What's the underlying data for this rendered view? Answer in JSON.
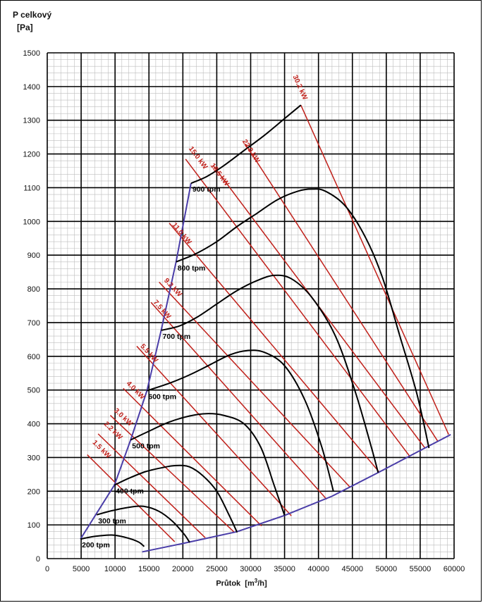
{
  "chart_data": {
    "type": "line",
    "ylabel_line1": "P celkový",
    "ylabel_line2": "[Pa]",
    "xlabel_main": "Průtok",
    "xlabel_unit_open": "[m",
    "xlabel_unit_sup": "3",
    "xlabel_unit_close": "/h]",
    "xlim": [
      0,
      60000
    ],
    "ylim": [
      0,
      1500
    ],
    "x_ticks": [
      "0",
      "5000",
      "10000",
      "15000",
      "20000",
      "25000",
      "30000",
      "35000",
      "40000",
      "45000",
      "50000",
      "55000",
      "60000"
    ],
    "y_ticks": [
      "0",
      "100",
      "200",
      "300",
      "400",
      "500",
      "600",
      "700",
      "800",
      "900",
      "1000",
      "1100",
      "1200",
      "1300",
      "1400",
      "1500"
    ],
    "grid": true,
    "speed_curves": [
      {
        "label": "200 tpm",
        "points": [
          [
            4900,
            58
          ],
          [
            7000,
            66
          ],
          [
            9500,
            70
          ],
          [
            11500,
            63
          ],
          [
            13400,
            50
          ],
          [
            14300,
            36
          ]
        ]
      },
      {
        "label": "300 tpm",
        "points": [
          [
            7300,
            130
          ],
          [
            9500,
            142
          ],
          [
            12000,
            152
          ],
          [
            14200,
            155
          ],
          [
            16500,
            140
          ],
          [
            18500,
            110
          ],
          [
            20200,
            72
          ],
          [
            21000,
            48
          ]
        ]
      },
      {
        "label": "400 tpm",
        "points": [
          [
            9900,
            218
          ],
          [
            12000,
            238
          ],
          [
            14500,
            258
          ],
          [
            17000,
            270
          ],
          [
            19000,
            276
          ],
          [
            21000,
            272
          ],
          [
            23000,
            245
          ],
          [
            25000,
            200
          ],
          [
            26800,
            130
          ],
          [
            28000,
            78
          ]
        ]
      },
      {
        "label": "500 tpm",
        "points": [
          [
            12300,
            352
          ],
          [
            15000,
            378
          ],
          [
            18000,
            405
          ],
          [
            21000,
            423
          ],
          [
            23500,
            430
          ],
          [
            26000,
            425
          ],
          [
            29000,
            400
          ],
          [
            31500,
            330
          ],
          [
            33500,
            215
          ],
          [
            35000,
            128
          ]
        ]
      },
      {
        "label": "600 tpm",
        "points": [
          [
            14700,
            498
          ],
          [
            18000,
            520
          ],
          [
            21000,
            545
          ],
          [
            24000,
            575
          ],
          [
            27000,
            605
          ],
          [
            29500,
            617
          ],
          [
            32000,
            612
          ],
          [
            35000,
            572
          ],
          [
            38000,
            470
          ],
          [
            40500,
            330
          ],
          [
            42200,
            200
          ]
        ]
      },
      {
        "label": "700 tpm",
        "points": [
          [
            16800,
            677
          ],
          [
            19500,
            690
          ],
          [
            22000,
            715
          ],
          [
            25000,
            755
          ],
          [
            28000,
            795
          ],
          [
            31000,
            825
          ],
          [
            33500,
            840
          ],
          [
            36000,
            830
          ],
          [
            39000,
            775
          ],
          [
            42500,
            660
          ],
          [
            45500,
            490
          ],
          [
            47800,
            330
          ],
          [
            48800,
            255
          ]
        ]
      },
      {
        "label": "800 tpm",
        "points": [
          [
            19000,
            880
          ],
          [
            22000,
            905
          ],
          [
            25000,
            940
          ],
          [
            28000,
            985
          ],
          [
            31000,
            1025
          ],
          [
            34000,
            1065
          ],
          [
            37000,
            1090
          ],
          [
            39000,
            1096
          ],
          [
            41000,
            1090
          ],
          [
            44000,
            1045
          ],
          [
            47000,
            950
          ],
          [
            49500,
            830
          ],
          [
            52000,
            660
          ],
          [
            54500,
            490
          ],
          [
            56300,
            328
          ]
        ]
      },
      {
        "label": "900 tpm",
        "points": [
          [
            21200,
            1113
          ],
          [
            23500,
            1133
          ],
          [
            26000,
            1165
          ],
          [
            29000,
            1210
          ],
          [
            32000,
            1255
          ],
          [
            35000,
            1305
          ],
          [
            37400,
            1345
          ]
        ]
      }
    ],
    "speed_label_anchor": [
      [
        4900,
        58
      ],
      [
        7300,
        130
      ],
      [
        9900,
        218
      ],
      [
        12300,
        352
      ],
      [
        14700,
        498
      ],
      [
        16800,
        677
      ],
      [
        19000,
        880
      ],
      [
        21200,
        1113
      ]
    ],
    "power_lines": [
      {
        "label": "1.5 kW",
        "from": [
          5900,
          308
        ],
        "to": [
          18800,
          50
        ]
      },
      {
        "label": "2.2 kW",
        "from": [
          7500,
          370
        ],
        "to": [
          23300,
          62
        ]
      },
      {
        "label": "3.0 kW",
        "from": [
          9300,
          425
        ],
        "to": [
          27600,
          78
        ]
      },
      {
        "label": "4.0 kW",
        "from": [
          11200,
          505
        ],
        "to": [
          31600,
          97
        ]
      },
      {
        "label": "5.5 kW",
        "from": [
          13200,
          630
        ],
        "to": [
          36000,
          127
        ]
      },
      {
        "label": "7.5 kW",
        "from": [
          15300,
          760
        ],
        "to": [
          41200,
          176
        ]
      },
      {
        "label": "9.2 kW",
        "from": [
          16500,
          820
        ],
        "to": [
          44600,
          213
        ]
      },
      {
        "label": "11.0 kW",
        "from": [
          18000,
          995
        ],
        "to": [
          48900,
          258
        ]
      },
      {
        "label": "15.0 kW",
        "from": [
          20400,
          1185
        ],
        "to": [
          53400,
          305
        ]
      },
      {
        "label": "18.5 kW",
        "from": [
          24500,
          1165
        ],
        "to": [
          55700,
          328
        ]
      },
      {
        "label": "22.0 kW",
        "from": [
          29200,
          1230
        ],
        "to": [
          57600,
          348
        ]
      },
      {
        "label": "30.2 kW",
        "from": [
          37400,
          1345
        ],
        "to": [
          59200,
          368
        ]
      }
    ],
    "power_label_positions": [
      [
        7800,
        320
      ],
      [
        9500,
        375
      ],
      [
        11000,
        415
      ],
      [
        12800,
        495
      ],
      [
        14800,
        605
      ],
      [
        16700,
        735
      ],
      [
        18300,
        800
      ],
      [
        19600,
        960
      ],
      [
        22000,
        1185
      ],
      [
        25200,
        1135
      ],
      [
        29800,
        1205
      ],
      [
        37000,
        1395
      ]
    ],
    "max_speed_boundary": [
      [
        4900,
        58
      ],
      [
        9900,
        218
      ],
      [
        12300,
        352
      ],
      [
        14700,
        498
      ],
      [
        16800,
        677
      ],
      [
        19000,
        880
      ],
      [
        21200,
        1113
      ]
    ],
    "min_flow_boundary": [
      [
        14000,
        20
      ],
      [
        20000,
        45
      ],
      [
        28000,
        80
      ],
      [
        35000,
        128
      ],
      [
        42000,
        185
      ],
      [
        48800,
        255
      ],
      [
        55700,
        328
      ],
      [
        59500,
        368
      ]
    ],
    "colors": {
      "speed_curves": "#000000",
      "power_lines": "#c0201a",
      "boundary": "#4a3da8",
      "power_labels": "#c0201a"
    }
  }
}
